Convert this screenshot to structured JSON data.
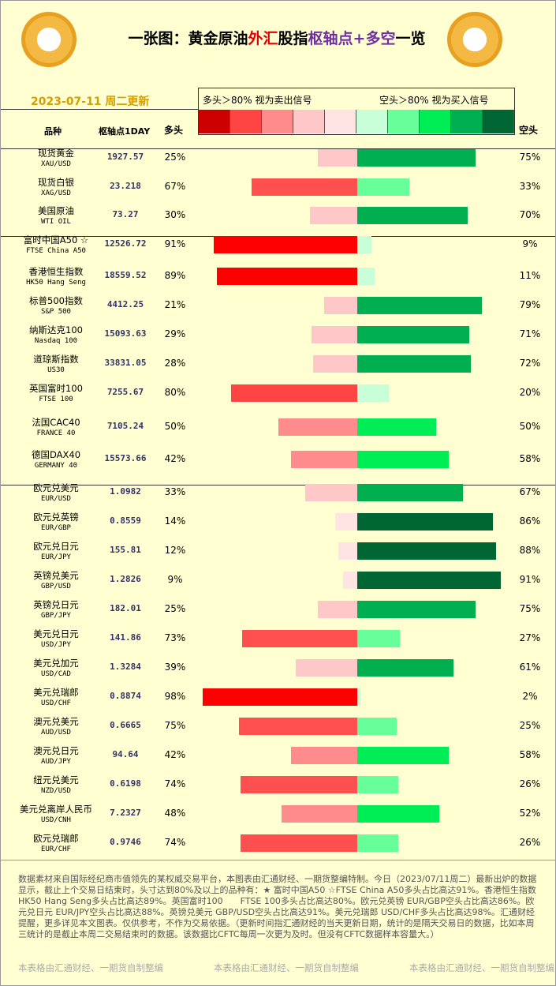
{
  "header": {
    "title_parts": [
      {
        "text": "一张图：黄金原油",
        "color": "#000000"
      },
      {
        "text": "外汇",
        "color": "#e00000"
      },
      {
        "text": "股指",
        "color": "#000000"
      },
      {
        "text": "枢轴点+多空",
        "color": "#7030a0"
      },
      {
        "text": "一览",
        "color": "#000000"
      }
    ],
    "date": "2023-07-11 周二更新"
  },
  "legend": {
    "left": "多头＞80% 视为卖出信号",
    "right": "空头＞80% 视为买入信号",
    "colors": [
      "#cc0000",
      "#ff4444",
      "#ff8c8c",
      "#ffc8c8",
      "#ffe4e4",
      "#c8ffd8",
      "#66ff99",
      "#00ee55",
      "#00b050",
      "#006633"
    ]
  },
  "columns": {
    "name": "品种",
    "pivot": "枢轴点1DAY",
    "long": "多头",
    "short": "空头"
  },
  "rows": [
    {
      "name": "现货黄金",
      "code": "XAU/USD",
      "pivot": 1927.57,
      "long": 25,
      "long_label": "25%",
      "long_color": "#ffc8c8",
      "short": 75,
      "short_label": "75%",
      "short_color": "#00b050"
    },
    {
      "name": "现货白银",
      "code": "XAG/USD",
      "pivot": 23.218,
      "long": 67,
      "long_label": "67%",
      "long_color": "#ff5050",
      "short": 33,
      "short_label": "33%",
      "short_color": "#66ff99"
    },
    {
      "name": "美国原油",
      "code": "WTI OIL",
      "pivot": 73.27,
      "long": 30,
      "long_label": "30%",
      "long_color": "#ffc8c8",
      "short": 70,
      "short_label": "70%",
      "short_color": "#00b050"
    },
    {
      "name": "富时中国A50 ☆",
      "code": "FTSE China A50",
      "pivot": 12526.72,
      "long": 91,
      "long_label": "91%",
      "long_color": "#ff0000",
      "short": 9,
      "short_label": "9%",
      "short_color": "#c8ffd8"
    },
    {
      "name": "香港恒生指数",
      "code": "HK50 Hang Seng",
      "pivot": 18559.52,
      "long": 89,
      "long_label": "89%",
      "long_color": "#ff0000",
      "short": 11,
      "short_label": "11%",
      "short_color": "#c8ffd8"
    },
    {
      "name": "标普500指数",
      "code": "S&P 500",
      "pivot": 4412.25,
      "long": 21,
      "long_label": "21%",
      "long_color": "#ffc8c8",
      "short": 79,
      "short_label": "79%",
      "short_color": "#00b050"
    },
    {
      "name": "纳斯达克100",
      "code": "Nasdaq 100",
      "pivot": 15093.63,
      "long": 29,
      "long_label": "29%",
      "long_color": "#ffc8c8",
      "short": 71,
      "short_label": "71%",
      "short_color": "#00b050"
    },
    {
      "name": "道琼斯指数",
      "code": "US30",
      "pivot": 33831.05,
      "long": 28,
      "long_label": "28%",
      "long_color": "#ffc8c8",
      "short": 72,
      "short_label": "72%",
      "short_color": "#00b050"
    },
    {
      "name": "英国富时100",
      "code": "FTSE 100",
      "pivot": 7255.67,
      "long": 80,
      "long_label": "80%",
      "long_color": "#ff4444",
      "short": 20,
      "short_label": "20%",
      "short_color": "#c8ffd8"
    },
    {
      "name": "法国CAC40",
      "code": "FRANCE 40",
      "pivot": 7105.24,
      "long": 50,
      "long_label": "50%",
      "long_color": "#ff8c8c",
      "short": 50,
      "short_label": "50%",
      "short_color": "#00ee55"
    },
    {
      "name": "德国DAX40",
      "code": "GERMANY 40",
      "pivot": 15573.66,
      "long": 42,
      "long_label": "42%",
      "long_color": "#ff8c8c",
      "short": 58,
      "short_label": "58%",
      "short_color": "#00ee55"
    },
    {
      "name": "欧元兑美元",
      "code": "EUR/USD",
      "pivot": 1.0982,
      "long": 33,
      "long_label": "33%",
      "long_color": "#ffc8c8",
      "short": 67,
      "short_label": "67%",
      "short_color": "#00b050"
    },
    {
      "name": "欧元兑英镑",
      "code": "EUR/GBP",
      "pivot": 0.8559,
      "long": 14,
      "long_label": "14%",
      "long_color": "#ffe4e4",
      "short": 86,
      "short_label": "86%",
      "short_color": "#006633"
    },
    {
      "name": "欧元兑日元",
      "code": "EUR/JPY",
      "pivot": 155.81,
      "long": 12,
      "long_label": "12%",
      "long_color": "#ffe4e4",
      "short": 88,
      "short_label": "88%",
      "short_color": "#006633"
    },
    {
      "name": "英镑兑美元",
      "code": "GBP/USD",
      "pivot": 1.2826,
      "long": 9,
      "long_label": "9%",
      "long_color": "#ffe4e4",
      "short": 91,
      "short_label": "91%",
      "short_color": "#006633"
    },
    {
      "name": "英镑兑日元",
      "code": "GBP/JPY",
      "pivot": 182.01,
      "long": 25,
      "long_label": "25%",
      "long_color": "#ffc8c8",
      "short": 75,
      "short_label": "75%",
      "short_color": "#00b050"
    },
    {
      "name": "美元兑日元",
      "code": "USD/JPY",
      "pivot": 141.86,
      "long": 73,
      "long_label": "73%",
      "long_color": "#ff5050",
      "short": 27,
      "short_label": "27%",
      "short_color": "#66ff99"
    },
    {
      "name": "美元兑加元",
      "code": "USD/CAD",
      "pivot": 1.3284,
      "long": 39,
      "long_label": "39%",
      "long_color": "#ffc8c8",
      "short": 61,
      "short_label": "61%",
      "short_color": "#00b050"
    },
    {
      "name": "美元兑瑞郎",
      "code": "USD/CHF",
      "pivot": 0.8874,
      "long": 98,
      "long_label": "98%",
      "long_color": "#ff0000",
      "short": 2,
      "short_label": "2%",
      "short_color": "#c8ffd8"
    },
    {
      "name": "澳元兑美元",
      "code": "AUD/USD",
      "pivot": 0.6665,
      "long": 75,
      "long_label": "75%",
      "long_color": "#ff5050",
      "short": 25,
      "short_label": "25%",
      "short_color": "#66ff99"
    },
    {
      "name": "澳元兑日元",
      "code": "AUD/JPY",
      "pivot": 94.64,
      "long": 42,
      "long_label": "42%",
      "long_color": "#ff8c8c",
      "short": 58,
      "short_label": "58%",
      "short_color": "#00ee55"
    },
    {
      "name": "纽元兑美元",
      "code": "NZD/USD",
      "pivot": 0.6198,
      "long": 74,
      "long_label": "74%",
      "long_color": "#ff5050",
      "short": 26,
      "short_label": "26%",
      "short_color": "#66ff99"
    },
    {
      "name": "美元兑离岸人民币",
      "code": "USD/CNH",
      "pivot": 7.2327,
      "long": 48,
      "long_label": "48%",
      "long_color": "#ff8c8c",
      "short": 52,
      "short_label": "52%",
      "short_color": "#00ee55"
    },
    {
      "name": "欧元兑瑞郎",
      "code": "EUR/CHF",
      "pivot": 0.9746,
      "long": 74,
      "long_label": "74%",
      "long_color": "#ff5050",
      "short": 26,
      "short_label": "26%",
      "short_color": "#66ff99"
    }
  ],
  "footer": {
    "text": "数据素材来自国际经纪商市值领先的某权威交易平台，本图表由汇通财经、一期货整编特制。今日（2023/07/11周二）最新出炉的数据显示，截止上个交易日结束时，头寸达到80%及以上的品种有：★ 富时中国A50 ☆FTSE China A50多头占比高达91%。香港恒生指数 HK50 Hang Seng多头占比高达89%。英国富时100　　FTSE 100多头占比高达80%。欧元兑英镑 EUR/GBP空头占比高达86%。欧元兑日元 EUR/JPY空头占比高达88%。英镑兑美元 GBP/USD空头占比高达91%。美元兑瑞郎 USD/CHF多头占比高达98%。汇通财经提醒，更多详见本文图表。仅供参考，不作为交易依据。（更新时间指汇通财经的当天更新日期，统计的是隔天交易日的数据，比如本周三统计的是截止本周二交易结束时的数据。该数据比CFTC每周一次更为及时。但没有CFTC数据样本容量大。）",
    "credits": [
      "本表格由汇通财经、一期货自制整编",
      "本表格由汇通财经、一期货自制整编",
      "本表格由汇通财经、一期货自制整编"
    ]
  }
}
